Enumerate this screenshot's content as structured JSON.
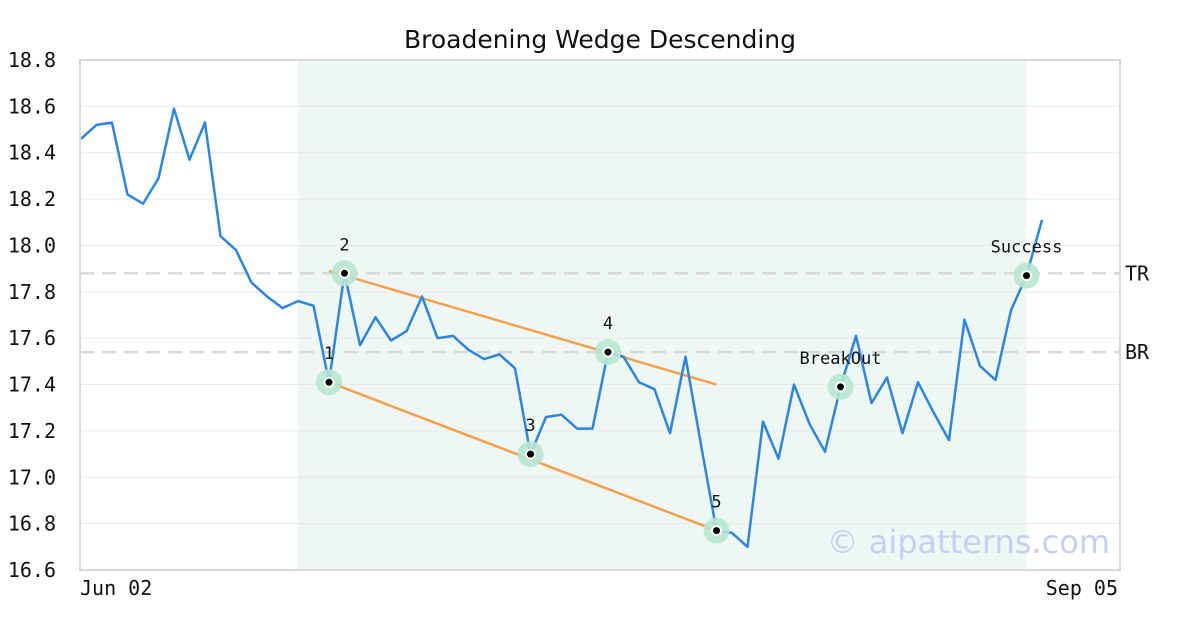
{
  "chart_data": {
    "type": "line",
    "title": "Broadening Wedge Descending",
    "ylim": [
      16.6,
      18.8
    ],
    "yticks": [
      "16.6",
      "16.8",
      "17.0",
      "17.2",
      "17.4",
      "17.6",
      "17.8",
      "18.0",
      "18.2",
      "18.4",
      "18.6",
      "18.8"
    ],
    "x_labels": [
      "Jun 02",
      "Sep 05"
    ],
    "grid": "horizontal",
    "colors": {
      "line": "#2b86e3",
      "trend": "#f7a04b",
      "highlight": "#eef7f3",
      "marker_halo": "#b6e6d0",
      "refline": "#d9d9d9",
      "axis": "#d8d8d8"
    },
    "series": [
      {
        "values": [
          18.46,
          18.52,
          18.53,
          18.22,
          18.18,
          18.29,
          18.59,
          18.37,
          18.53,
          18.04,
          17.98,
          17.84,
          17.78,
          17.73,
          17.76,
          17.74,
          17.41,
          17.88,
          17.57,
          17.69,
          17.59,
          17.63,
          17.78,
          17.6,
          17.61,
          17.55,
          17.51,
          17.53,
          17.47,
          17.1,
          17.26,
          17.27,
          17.21,
          17.21,
          17.54,
          17.52,
          17.41,
          17.38,
          17.19,
          17.52,
          17.14,
          16.77,
          16.76,
          16.7,
          17.24,
          17.08,
          17.4,
          17.23,
          17.11,
          17.39,
          17.61,
          17.32,
          17.43,
          17.19,
          17.41,
          17.28,
          17.16,
          17.68,
          17.48,
          17.42,
          17.72,
          17.87,
          18.11
        ]
      }
    ],
    "highlight_range": [
      14,
      61
    ],
    "pattern_points": [
      {
        "label": "1",
        "index": 16,
        "value": 17.41
      },
      {
        "label": "2",
        "index": 17,
        "value": 17.88
      },
      {
        "label": "3",
        "index": 29,
        "value": 17.1
      },
      {
        "label": "4",
        "index": 34,
        "value": 17.54
      },
      {
        "label": "5",
        "index": 41,
        "value": 16.77
      },
      {
        "label": "BreakOut",
        "index": 49,
        "value": 17.39
      },
      {
        "label": "Success",
        "index": 61,
        "value": 17.87
      }
    ],
    "trendlines": [
      {
        "from": {
          "index": 16,
          "value": 17.41
        },
        "to": {
          "index": 41,
          "value": 16.77
        }
      },
      {
        "from": {
          "index": 16,
          "value": 17.89
        },
        "to": {
          "index": 41,
          "value": 17.4
        }
      }
    ],
    "reference_lines": [
      {
        "label": "TR",
        "value": 17.88
      },
      {
        "label": "BR",
        "value": 17.54
      }
    ],
    "watermark": "© aipatterns.com"
  }
}
